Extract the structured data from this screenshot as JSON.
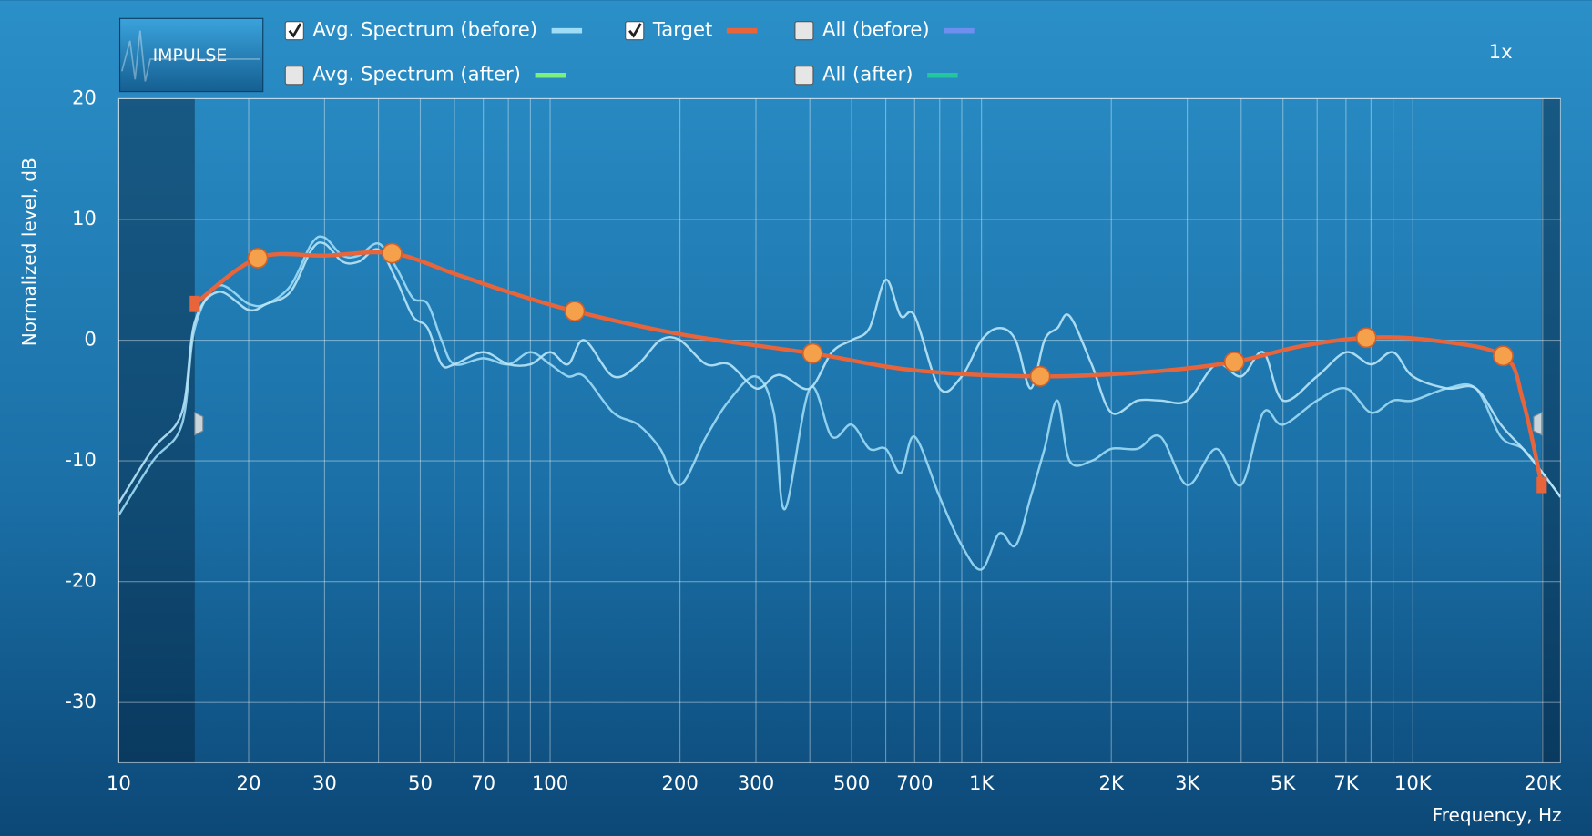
{
  "header": {
    "logo": "IMPULSE",
    "zoom": "1x"
  },
  "legend": [
    {
      "label": "Avg. Spectrum (before)",
      "checked": true,
      "color": "#9fdcf5"
    },
    {
      "label": "Target",
      "checked": true,
      "color": "#e8643a"
    },
    {
      "label": "All (before)",
      "checked": false,
      "color": "#6f8ff0"
    },
    {
      "label": "Avg. Spectrum (after)",
      "checked": false,
      "color": "#7cef7c"
    },
    {
      "label": "All (after)",
      "checked": false,
      "color": "#22c7a0"
    }
  ],
  "chart_data": {
    "type": "line",
    "xlabel": "Frequency, Hz",
    "ylabel": "Normalized level, dB",
    "x_scale": "log",
    "xlim": [
      10,
      22000
    ],
    "ylim": [
      -35,
      20
    ],
    "grid": true,
    "yticks": [
      -30,
      -20,
      -10,
      0,
      10,
      20
    ],
    "xticks": [
      10,
      20,
      30,
      50,
      70,
      100,
      200,
      300,
      500,
      700,
      {
        "value": 1000,
        "label": "1K"
      },
      {
        "value": 2000,
        "label": "2K"
      },
      {
        "value": 3000,
        "label": "3K"
      },
      {
        "value": 5000,
        "label": "5K"
      },
      {
        "value": 7000,
        "label": "7K"
      },
      {
        "value": 10000,
        "label": "10K"
      },
      {
        "value": 20000,
        "label": "20K"
      }
    ],
    "xgrid_minor": [
      40,
      60,
      80,
      90,
      400,
      600,
      800,
      900,
      4000,
      6000,
      8000,
      9000
    ],
    "x": [
      10,
      12,
      14,
      15,
      17,
      20,
      22,
      25,
      28,
      30,
      33,
      36,
      40,
      44,
      48,
      52,
      56,
      60,
      70,
      80,
      90,
      100,
      110,
      120,
      140,
      160,
      180,
      200,
      230,
      260,
      300,
      330,
      350,
      400,
      450,
      500,
      550,
      600,
      650,
      700,
      800,
      900,
      1000,
      1100,
      1200,
      1300,
      1400,
      1500,
      1600,
      1800,
      2000,
      2300,
      2600,
      3000,
      3500,
      4000,
      4500,
      5000,
      6000,
      7000,
      8000,
      9000,
      10000,
      12000,
      14000,
      16000,
      18000,
      20000,
      22000
    ],
    "series": [
      {
        "color": "#9fdcf5",
        "values": [
          -14.5,
          -10,
          -7,
          1,
          4.5,
          3,
          3,
          4.5,
          8,
          8.5,
          7,
          7,
          8,
          6,
          3.5,
          3,
          0,
          -2,
          -1.5,
          -2,
          -1,
          -2,
          -3,
          -3,
          -6,
          -7,
          -9,
          -12,
          -8,
          -5,
          -3,
          -6,
          -14,
          -4,
          -8,
          -7,
          -9,
          -9,
          -11,
          -8,
          -13,
          -17,
          -19,
          -16,
          -17,
          -13,
          -9,
          -5,
          -10,
          -10,
          -9,
          -9,
          -8,
          -12,
          -9,
          -12,
          -6,
          -7,
          -5,
          -4,
          -6,
          -5,
          -5,
          -4,
          -4,
          -8,
          -9,
          -11,
          -13
        ]
      },
      {
        "color": "#b9e6f7",
        "values": [
          -13.5,
          -9,
          -6,
          1.5,
          4,
          2.5,
          3,
          4,
          7.5,
          8,
          6.5,
          6.5,
          7.5,
          5,
          2,
          1,
          -2,
          -2,
          -1,
          -2,
          -2,
          -1,
          -2,
          0,
          -3,
          -2,
          0,
          0,
          -2,
          -2,
          -4,
          -3,
          -3,
          -4,
          -1,
          0,
          1,
          5,
          2,
          2,
          -4,
          -3,
          0,
          1,
          0,
          -4,
          0,
          1,
          2,
          -2,
          -6,
          -5,
          -5,
          -5,
          -2,
          -3,
          -1,
          -5,
          -3,
          -1,
          -2,
          -1,
          -3,
          -4,
          -4,
          -7,
          -9,
          -11,
          -13
        ]
      }
    ],
    "target": {
      "color": "#e8643a",
      "x": [
        15,
        21,
        30,
        43,
        60,
        80,
        114,
        200,
        406,
        700,
        1368,
        2500,
        3855,
        5500,
        7800,
        11000,
        16200,
        18000,
        19900
      ],
      "values": [
        3,
        6.8,
        7,
        7.2,
        5.5,
        4,
        2.4,
        0.5,
        -1.1,
        -2.5,
        -3,
        -2.6,
        -1.8,
        -0.5,
        0.2,
        0,
        -1.3,
        -5,
        -12
      ],
      "handles": {
        "color": "#f5a04a",
        "x": [
          21,
          43,
          114,
          406,
          1368,
          3855,
          7800,
          16200
        ],
        "values": [
          6.8,
          7.2,
          2.4,
          -1.1,
          -3,
          -1.8,
          0.2,
          -1.3
        ]
      }
    }
  }
}
